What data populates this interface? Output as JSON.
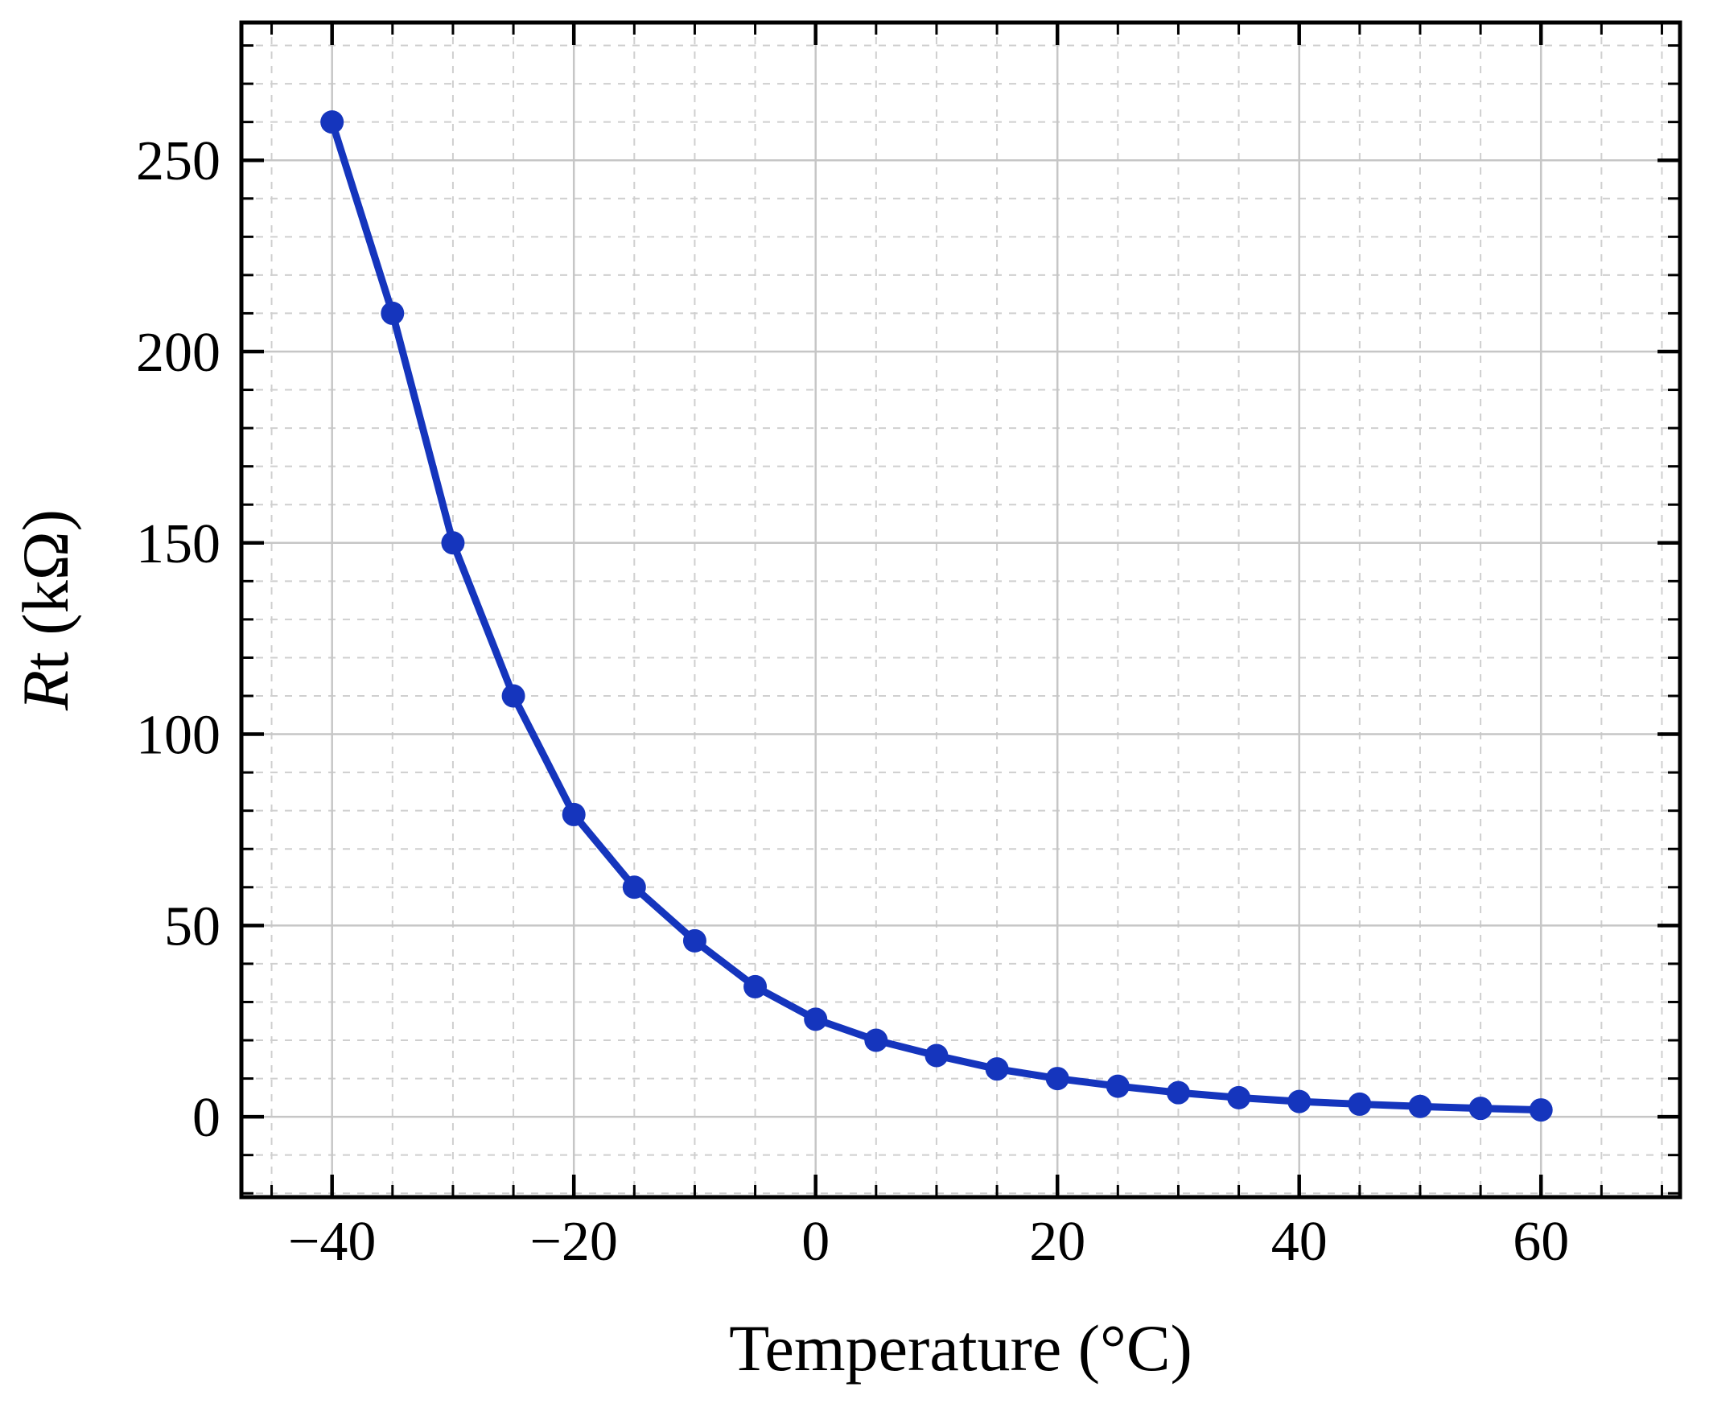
{
  "chart_data": {
    "type": "line",
    "title": "",
    "xlabel": "Temperature (°C)",
    "ylabel_italic": "R",
    "ylabel_rest": "t (kΩ)",
    "x": [
      -40,
      -35,
      -30,
      -25,
      -20,
      -15,
      -10,
      -5,
      0,
      5,
      10,
      15,
      20,
      25,
      30,
      35,
      40,
      45,
      50,
      55,
      60
    ],
    "y": [
      260,
      210,
      150,
      110,
      79,
      60,
      46,
      34,
      25.5,
      20,
      16,
      12.5,
      10,
      8,
      6.3,
      5,
      4,
      3.3,
      2.7,
      2.2,
      1.8
    ],
    "xlim": [
      -47.5,
      71.5
    ],
    "ylim": [
      -21,
      286
    ],
    "x_major_ticks": [
      -40,
      -20,
      0,
      20,
      40,
      60
    ],
    "x_minor_step": 5,
    "y_major_ticks": [
      0,
      50,
      100,
      150,
      200,
      250
    ],
    "y_minor_step": 10,
    "grid": "on",
    "legend": "none",
    "line_color": "#1535bd",
    "marker_color": "#1535bd",
    "grid_major_color": "#c6c6c6",
    "grid_minor_color": "#cfcfcf",
    "axis_color": "#000000"
  }
}
